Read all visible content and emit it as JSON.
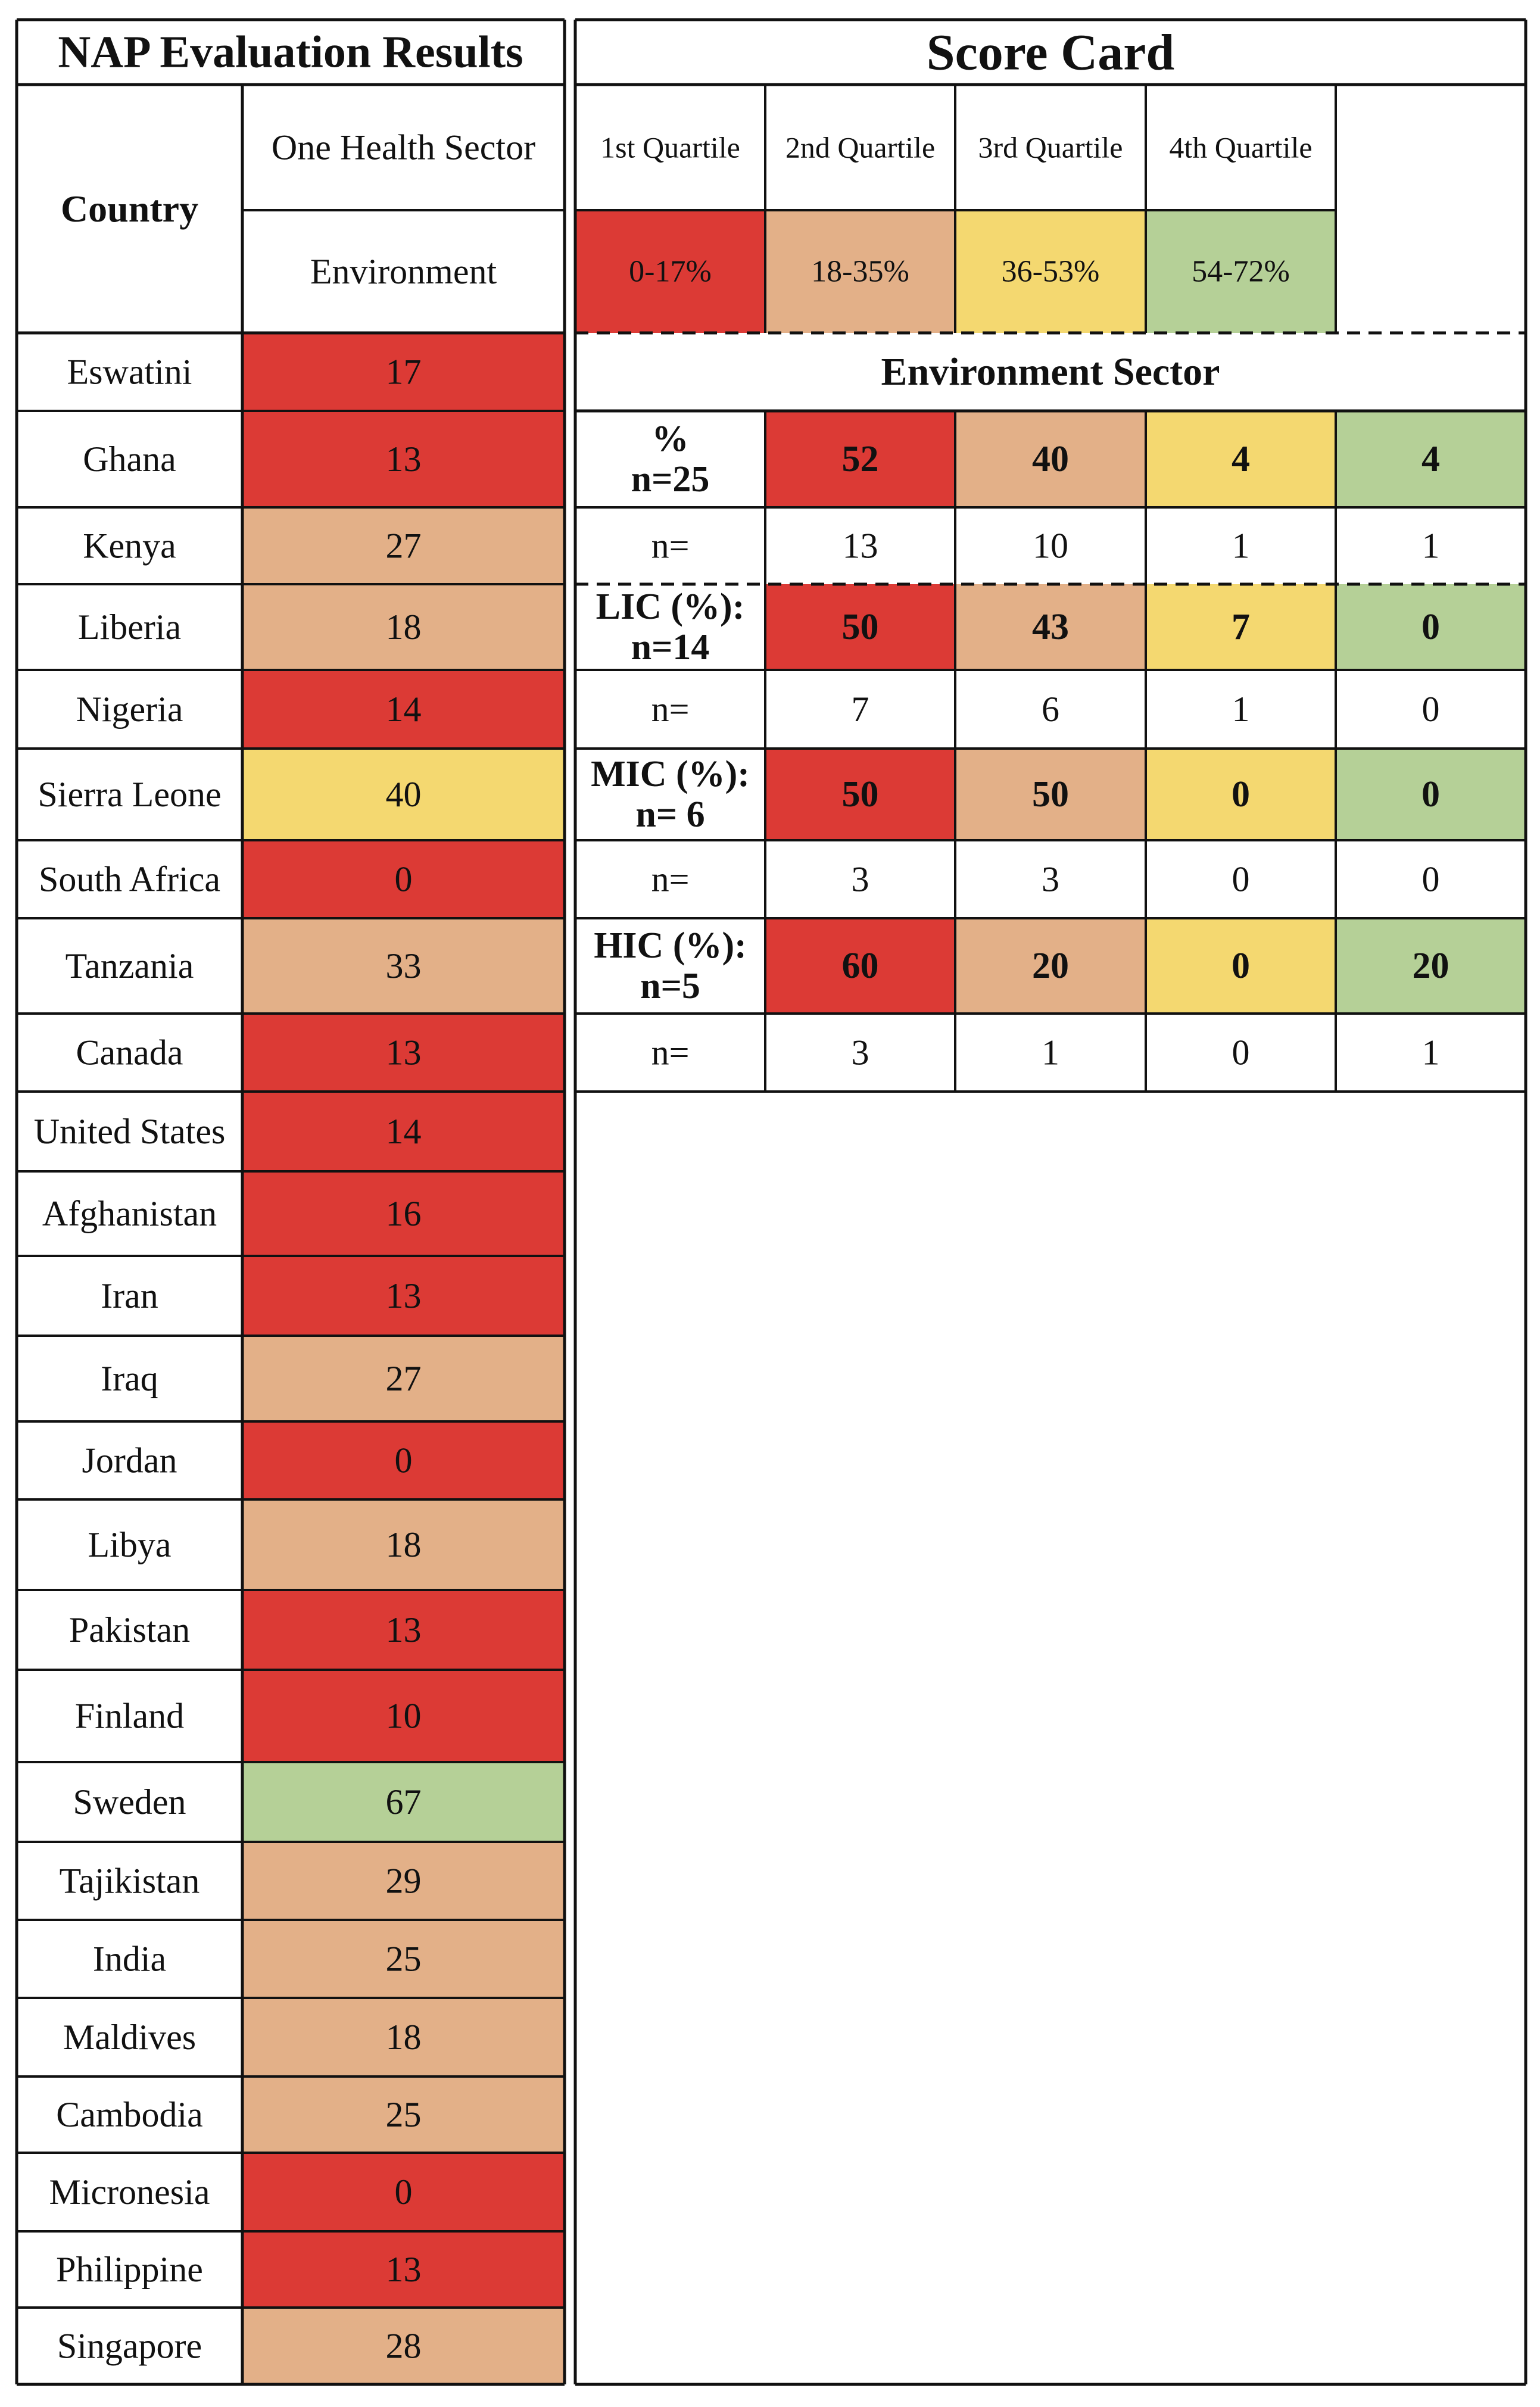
{
  "left_panel": {
    "title": "NAP Evaluation Results",
    "country_header": "Country",
    "sector_header": "One Health Sector",
    "sector_name": "Environment"
  },
  "score_card": {
    "title": "Score Card",
    "quartiles": [
      {
        "label": "1st Quartile",
        "range": "0-17%",
        "color": "#dc3a35"
      },
      {
        "label": "2nd Quartile",
        "range": "18-35%",
        "color": "#e3b088"
      },
      {
        "label": "3rd Quartile",
        "range": "36-53%",
        "color": "#f4d870"
      },
      {
        "label": "4th Quartile",
        "range": "54-72%",
        "color": "#b5d097"
      }
    ],
    "section_title": "Environment Sector",
    "groups": [
      {
        "label_lines": [
          "%",
          "n=25"
        ],
        "percent": [
          "52",
          "40",
          "4",
          "4"
        ],
        "n_label": "n=",
        "n": [
          "13",
          "10",
          "1",
          "1"
        ]
      },
      {
        "label_lines": [
          "LIC (%):",
          "n=14"
        ],
        "percent": [
          "50",
          "43",
          "7",
          "0"
        ],
        "n_label": "n=",
        "n": [
          "7",
          "6",
          "1",
          "0"
        ]
      },
      {
        "label_lines": [
          "MIC (%):",
          "n= 6"
        ],
        "percent": [
          "50",
          "50",
          "0",
          "0"
        ],
        "n_label": "n=",
        "n": [
          "3",
          "3",
          "0",
          "0"
        ]
      },
      {
        "label_lines": [
          "HIC (%):",
          "n=5"
        ],
        "percent": [
          "60",
          "20",
          "0",
          "20"
        ],
        "n_label": "n=",
        "n": [
          "3",
          "1",
          "0",
          "1"
        ]
      }
    ]
  },
  "chart_data": {
    "type": "table",
    "title": "NAP Evaluation Results",
    "columns": [
      "Country",
      "Environment"
    ],
    "rows": [
      {
        "country": "Eswatini",
        "value": 17,
        "quartile": 1
      },
      {
        "country": "Ghana",
        "value": 13,
        "quartile": 1
      },
      {
        "country": "Kenya",
        "value": 27,
        "quartile": 2
      },
      {
        "country": "Liberia",
        "value": 18,
        "quartile": 2
      },
      {
        "country": "Nigeria",
        "value": 14,
        "quartile": 1
      },
      {
        "country": "Sierra Leone",
        "value": 40,
        "quartile": 3
      },
      {
        "country": "South Africa",
        "value": 0,
        "quartile": 1
      },
      {
        "country": "Tanzania",
        "value": 33,
        "quartile": 2
      },
      {
        "country": "Canada",
        "value": 13,
        "quartile": 1
      },
      {
        "country": "United States",
        "value": 14,
        "quartile": 1
      },
      {
        "country": "Afghanistan",
        "value": 16,
        "quartile": 1
      },
      {
        "country": "Iran",
        "value": 13,
        "quartile": 1
      },
      {
        "country": "Iraq",
        "value": 27,
        "quartile": 2
      },
      {
        "country": "Jordan",
        "value": 0,
        "quartile": 1
      },
      {
        "country": "Libya",
        "value": 18,
        "quartile": 2
      },
      {
        "country": "Pakistan",
        "value": 13,
        "quartile": 1
      },
      {
        "country": "Finland",
        "value": 10,
        "quartile": 1
      },
      {
        "country": "Sweden",
        "value": 67,
        "quartile": 4
      },
      {
        "country": "Tajikistan",
        "value": 29,
        "quartile": 2
      },
      {
        "country": "India",
        "value": 25,
        "quartile": 2
      },
      {
        "country": "Maldives",
        "value": 18,
        "quartile": 2
      },
      {
        "country": "Cambodia",
        "value": 25,
        "quartile": 2
      },
      {
        "country": "Micronesia",
        "value": 0,
        "quartile": 1
      },
      {
        "country": "Philippine",
        "value": 13,
        "quartile": 1
      },
      {
        "country": "Singapore",
        "value": 28,
        "quartile": 2
      }
    ]
  }
}
